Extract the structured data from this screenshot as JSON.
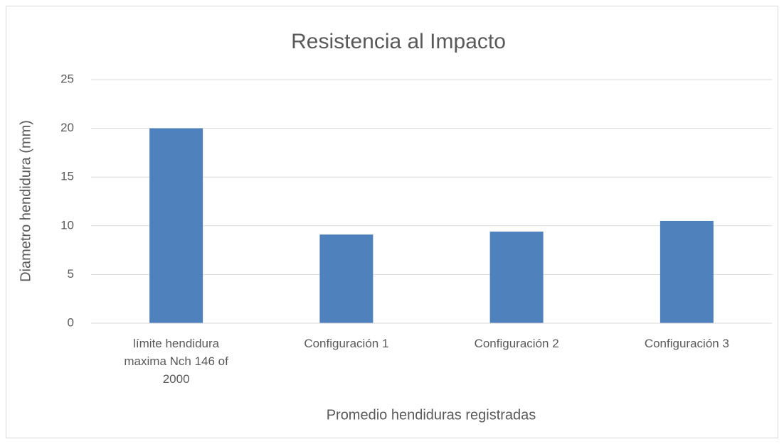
{
  "chart_data": {
    "type": "bar",
    "title": "Resistencia al Impacto",
    "x_label": "Promedio hendiduras registradas",
    "y_label": "Diametro hendidura (mm)",
    "categories": [
      "límite hendidura maxima Nch 146 of 2000",
      "Configuración 1",
      "Configuración 2",
      "Configuración 3"
    ],
    "values": [
      20,
      9.1,
      9.4,
      10.5
    ],
    "color": "#4f81bd",
    "ylim": [
      0,
      25
    ],
    "yticks": [
      0,
      5,
      10,
      15,
      20,
      25
    ],
    "grid": true
  }
}
